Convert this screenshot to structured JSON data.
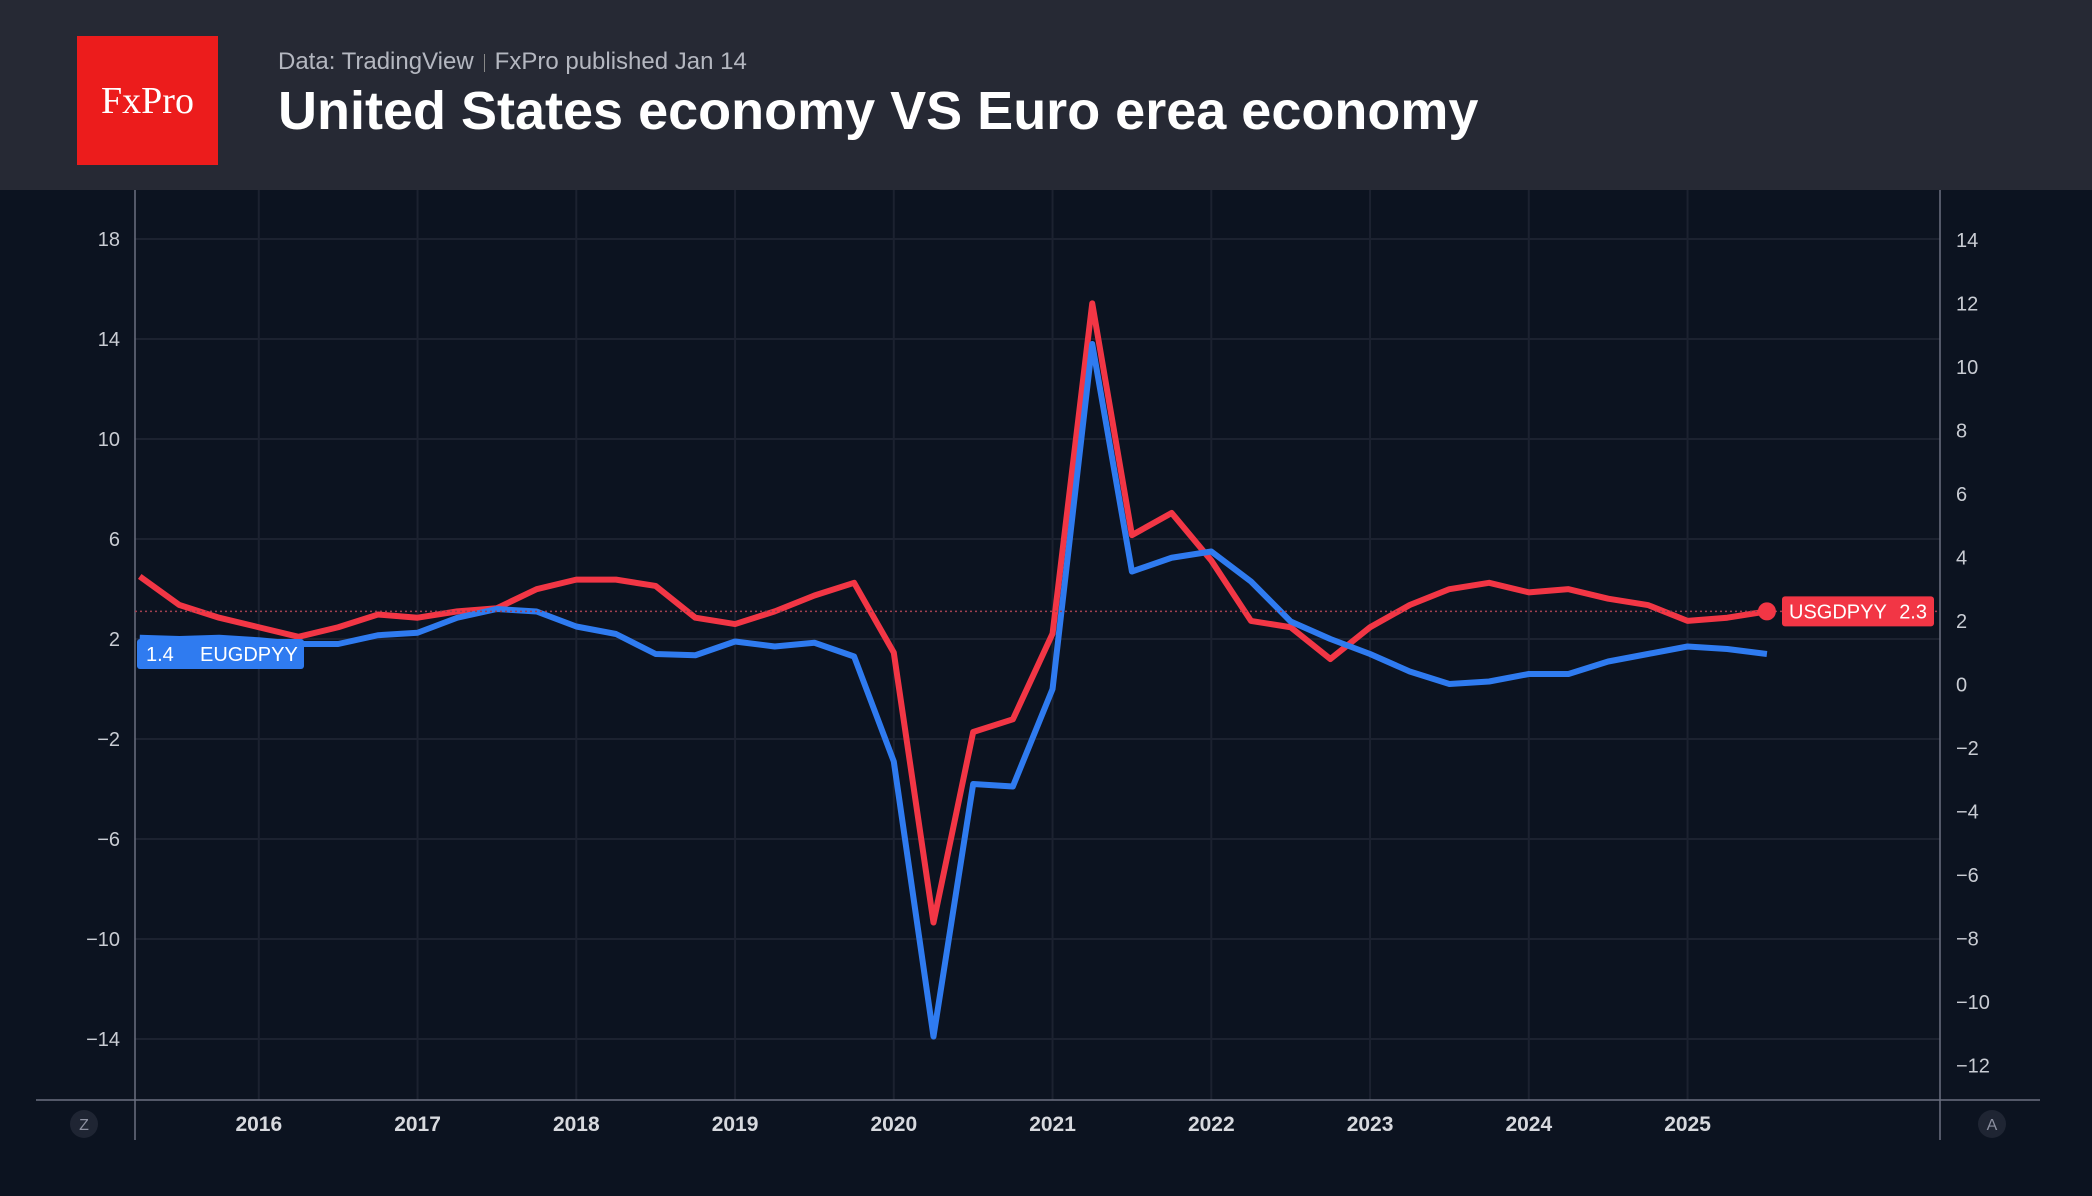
{
  "header": {
    "logo": "FxPro",
    "source": "Data: TradingView",
    "published": "FxPro published Jan 14",
    "title": "United States economy VS Euro erea economy"
  },
  "buttons": {
    "left": "Z",
    "right": "A"
  },
  "chart_data": {
    "type": "line",
    "title": "United States economy VS Euro erea economy",
    "grid": true,
    "x_ticks": [
      "2016",
      "2017",
      "2018",
      "2019",
      "2020",
      "2021",
      "2022",
      "2023",
      "2024",
      "2025"
    ],
    "left_axis": {
      "ticks": [
        18,
        14,
        10,
        6,
        2,
        -2,
        -6,
        -10,
        -14
      ],
      "range": [
        -16.5,
        20
      ]
    },
    "right_axis": {
      "ticks": [
        14,
        12,
        10,
        8,
        6,
        4,
        2,
        0,
        -2,
        -4,
        -6,
        -8,
        -10,
        -12
      ],
      "range": [
        -13,
        15.5
      ]
    },
    "x": [
      "2015-Q2",
      "2015-Q3",
      "2015-Q4",
      "2016-Q1",
      "2016-Q2",
      "2016-Q3",
      "2016-Q4",
      "2017-Q1",
      "2017-Q2",
      "2017-Q3",
      "2017-Q4",
      "2018-Q1",
      "2018-Q2",
      "2018-Q3",
      "2018-Q4",
      "2019-Q1",
      "2019-Q2",
      "2019-Q3",
      "2019-Q4",
      "2020-Q1",
      "2020-Q2",
      "2020-Q3",
      "2020-Q4",
      "2021-Q1",
      "2021-Q2",
      "2021-Q3",
      "2021-Q4",
      "2022-Q1",
      "2022-Q2",
      "2022-Q3",
      "2022-Q4",
      "2023-Q1",
      "2023-Q2",
      "2023-Q3",
      "2023-Q4",
      "2024-Q1",
      "2024-Q2",
      "2024-Q3",
      "2024-Q4",
      "2025-Q1",
      "2025-Q2",
      "2025-Q3"
    ],
    "series": [
      {
        "name": "USGDPYY",
        "axis": "right",
        "color": "#f23645",
        "last_value": "2.3",
        "values": [
          3.4,
          2.5,
          2.1,
          1.8,
          1.5,
          1.8,
          2.2,
          2.1,
          2.3,
          2.4,
          3.0,
          3.3,
          3.3,
          3.1,
          2.1,
          1.9,
          2.3,
          2.8,
          3.2,
          1.0,
          -7.5,
          -1.5,
          -1.1,
          1.6,
          12.0,
          4.7,
          5.4,
          3.9,
          2.0,
          1.8,
          0.8,
          1.8,
          2.5,
          3.0,
          3.2,
          2.9,
          3.0,
          2.7,
          2.5,
          2.0,
          2.1,
          2.3
        ]
      },
      {
        "name": "EUGDPYY",
        "axis": "left",
        "color": "#2f7bf0",
        "last_value": "1.4",
        "values": [
          2.05,
          2.0,
          2.05,
          1.95,
          1.8,
          1.8,
          2.15,
          2.25,
          2.85,
          3.2,
          3.1,
          2.5,
          2.2,
          1.4,
          1.35,
          1.9,
          1.7,
          1.85,
          1.3,
          -2.9,
          -13.9,
          -3.8,
          -3.9,
          0.0,
          13.8,
          4.7,
          5.25,
          5.5,
          4.3,
          2.7,
          2.0,
          1.4,
          0.7,
          0.2,
          0.3,
          0.6,
          0.6,
          1.1,
          1.4,
          1.7,
          1.6,
          1.4
        ]
      }
    ]
  }
}
